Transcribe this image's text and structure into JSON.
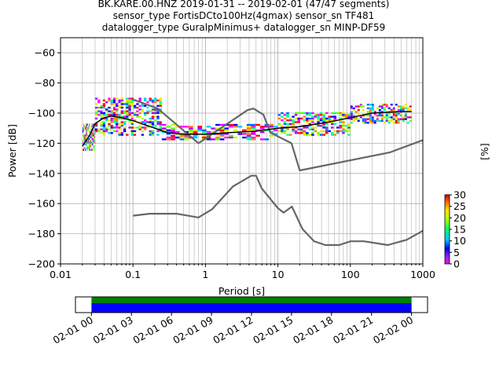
{
  "title": {
    "line1": "BK.KARE.00.HNZ   2019-01-31 -- 2019-02-01  (47/47 segments)",
    "line2": "sensor_type FortisDCto100Hz(4gmax) sensor_sn TF481",
    "line3": "datalogger_type GuralpMinimus+ datalogger_sn MINP-DF59"
  },
  "chart_data": [
    {
      "type": "heatmap",
      "title": "BK.KARE.00.HNZ   2019-01-31 -- 2019-02-01  (47/47 segments)",
      "xlabel": "Period [s]",
      "ylabel": "Power [dB]",
      "xscale": "log",
      "xlim": [
        0.01,
        1000
      ],
      "ylim": [
        -200,
        -50
      ],
      "xticks": [
        "0.01",
        "0.1",
        "1",
        "10",
        "100",
        "1000"
      ],
      "yticks": [
        -200,
        -180,
        -160,
        -140,
        -120,
        -100,
        -80,
        -60
      ],
      "grid": true,
      "colorbar": {
        "label": "[%]",
        "min": 0,
        "max": 30,
        "ticks": [
          0,
          5,
          10,
          15,
          20,
          25,
          30
        ]
      },
      "series": [
        {
          "name": "",
          "role": "noise model upper",
          "x": [
            0.1,
            0.22,
            0.8,
            3.8,
            4.6,
            6.3,
            7.9,
            15.4,
            20,
            354.8,
            10000
          ],
          "y": [
            -91,
            -97,
            -120,
            -98,
            -97,
            -101,
            -113,
            -120,
            -138,
            -126,
            -100
          ]
        },
        {
          "name": "",
          "role": "noise model lower",
          "x": [
            0.1,
            0.17,
            0.4,
            0.8,
            1.24,
            2.4,
            4.3,
            5,
            6,
            10,
            12,
            15.6,
            21.9,
            31.6,
            45,
            70,
            101,
            154,
            328,
            600,
            1000
          ],
          "y": [
            -168,
            -166.7,
            -166.7,
            -169.2,
            -163.7,
            -148.6,
            -141.5,
            -141.5,
            -150,
            -163,
            -166,
            -162,
            -177,
            -185,
            -187.5,
            -187.5,
            -185,
            -185,
            -187.5,
            -184,
            -178
          ]
        },
        {
          "name": "",
          "role": "mode",
          "x": [
            0.02,
            0.025,
            0.03,
            0.04,
            0.05,
            0.07,
            0.1,
            0.15,
            0.2,
            0.3,
            0.5,
            1,
            2,
            5,
            10,
            20,
            50,
            100,
            200,
            500,
            700
          ],
          "y": [
            -122,
            -115,
            -107,
            -103,
            -102,
            -103,
            -105,
            -108,
            -110,
            -113,
            -114,
            -114,
            -113,
            -112,
            -110,
            -109,
            -106,
            -103,
            -100,
            -99,
            -99
          ]
        }
      ],
      "density": [
        {
          "period_min": 0.02,
          "period_max": 0.03,
          "power_min": -125,
          "power_max": -108
        },
        {
          "period_min": 0.03,
          "period_max": 0.25,
          "power_min": -115,
          "power_max": -90
        },
        {
          "period_min": 0.25,
          "period_max": 10,
          "power_min": -118,
          "power_max": -108
        },
        {
          "period_min": 10,
          "period_max": 100,
          "power_min": -115,
          "power_max": -100
        },
        {
          "period_min": 100,
          "period_max": 700,
          "power_min": -107,
          "power_max": -94
        }
      ]
    },
    {
      "type": "bar",
      "title": "",
      "xlabel": "",
      "xticks": [
        "02-01 00",
        "02-01 03",
        "02-01 06",
        "02-01 09",
        "02-01 12",
        "02-01 15",
        "02-01 18",
        "02-01 21",
        "02-02 00"
      ],
      "coverage": [
        {
          "name": "",
          "start_hours": 0,
          "end_hours": 24,
          "color": "#008000"
        },
        {
          "name": "",
          "start_hours": 0,
          "end_hours": 24,
          "color": "#0000ff"
        }
      ],
      "range_hours": [
        -1.2,
        25.2
      ]
    }
  ],
  "colors": {
    "noise_model": "#666666",
    "mode_line": "#000000",
    "grid": "#b0b0b0"
  }
}
